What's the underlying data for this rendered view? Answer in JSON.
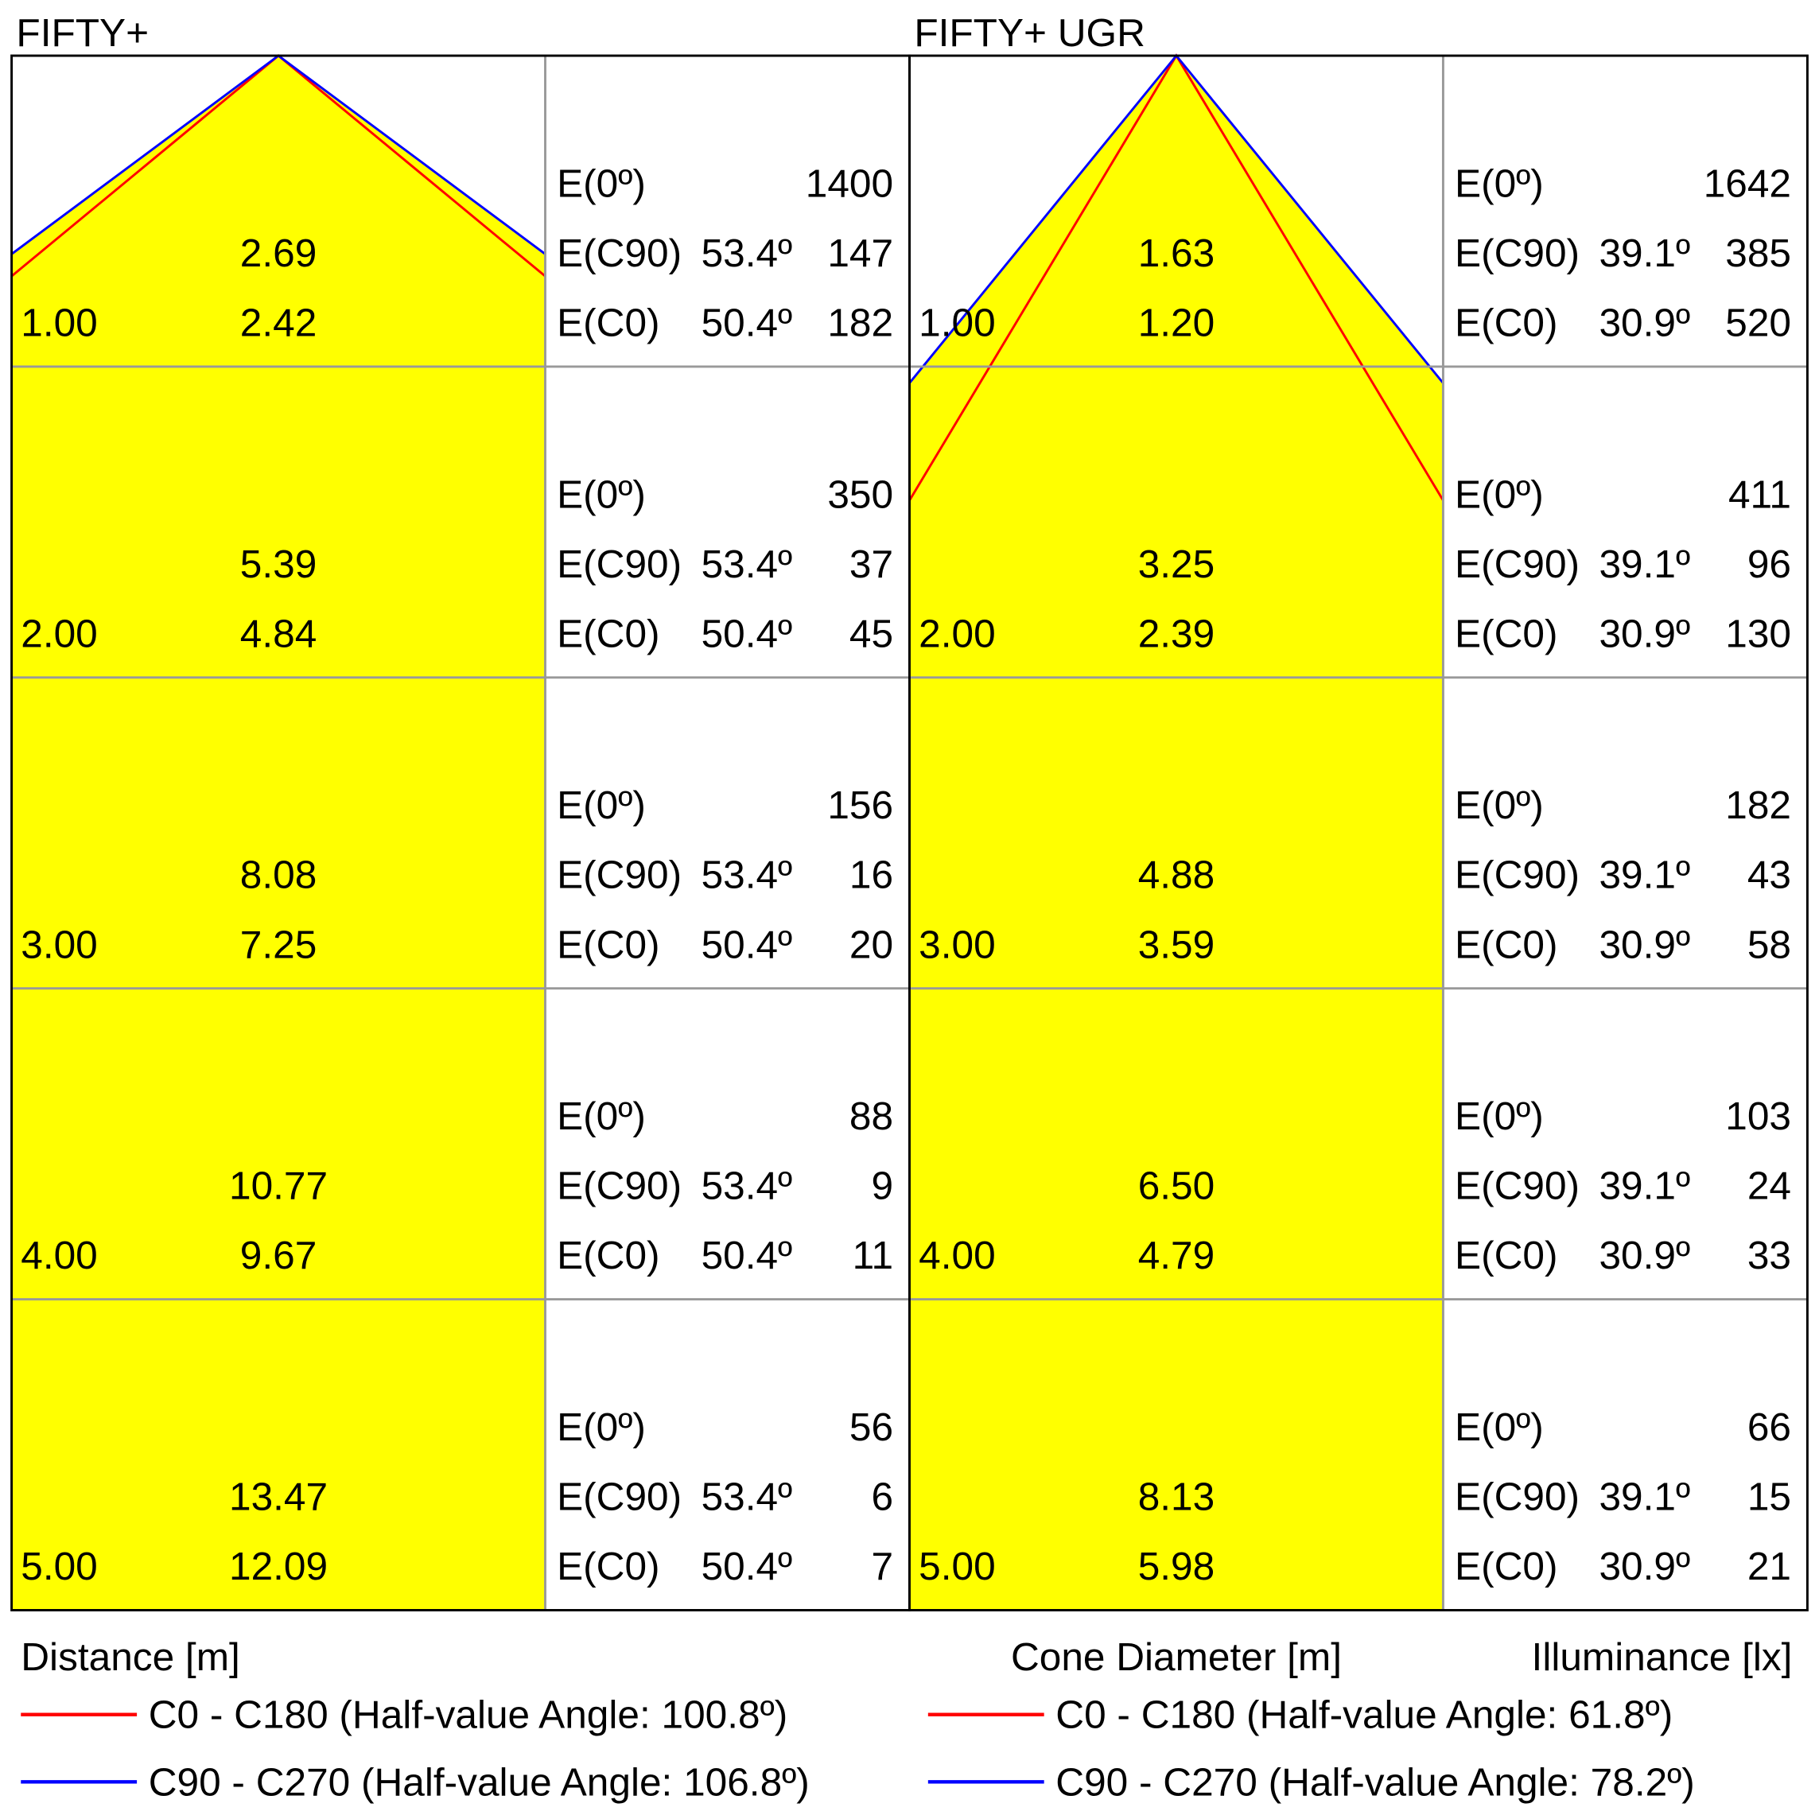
{
  "panels": [
    {
      "title": "FIFTY+",
      "rows": [
        {
          "distance": "1.00",
          "c90_diameter": "2.69",
          "c0_diameter": "2.42",
          "e0": "1400",
          "ec90_angle": "53.4º",
          "ec90": "147",
          "ec0_angle": "50.4º",
          "ec0": "182"
        },
        {
          "distance": "2.00",
          "c90_diameter": "5.39",
          "c0_diameter": "4.84",
          "e0": "350",
          "ec90_angle": "53.4º",
          "ec90": "37",
          "ec0_angle": "50.4º",
          "ec0": "45"
        },
        {
          "distance": "3.00",
          "c90_diameter": "8.08",
          "c0_diameter": "7.25",
          "e0": "156",
          "ec90_angle": "53.4º",
          "ec90": "16",
          "ec0_angle": "50.4º",
          "ec0": "20"
        },
        {
          "distance": "4.00",
          "c90_diameter": "10.77",
          "c0_diameter": "9.67",
          "e0": "88",
          "ec90_angle": "53.4º",
          "ec90": "9",
          "ec0_angle": "50.4º",
          "ec0": "11"
        },
        {
          "distance": "5.00",
          "c90_diameter": "13.47",
          "c0_diameter": "12.09",
          "e0": "56",
          "ec90_angle": "53.4º",
          "ec90": "6",
          "ec0_angle": "50.4º",
          "ec0": "7"
        }
      ],
      "legend": [
        "C0 - C180 (Half-value Angle: 100.8º)",
        "C90 - C270 (Half-value Angle: 106.8º)"
      ]
    },
    {
      "title": "FIFTY+ UGR",
      "rows": [
        {
          "distance": "1.00",
          "c90_diameter": "1.63",
          "c0_diameter": "1.20",
          "e0": "1642",
          "ec90_angle": "39.1º",
          "ec90": "385",
          "ec0_angle": "30.9º",
          "ec0": "520"
        },
        {
          "distance": "2.00",
          "c90_diameter": "3.25",
          "c0_diameter": "2.39",
          "e0": "411",
          "ec90_angle": "39.1º",
          "ec90": "96",
          "ec0_angle": "30.9º",
          "ec0": "130"
        },
        {
          "distance": "3.00",
          "c90_diameter": "4.88",
          "c0_diameter": "3.59",
          "e0": "182",
          "ec90_angle": "39.1º",
          "ec90": "43",
          "ec0_angle": "30.9º",
          "ec0": "58"
        },
        {
          "distance": "4.00",
          "c90_diameter": "6.50",
          "c0_diameter": "4.79",
          "e0": "103",
          "ec90_angle": "39.1º",
          "ec90": "24",
          "ec0_angle": "30.9º",
          "ec0": "33"
        },
        {
          "distance": "5.00",
          "c90_diameter": "8.13",
          "c0_diameter": "5.98",
          "e0": "66",
          "ec90_angle": "39.1º",
          "ec90": "15",
          "ec0_angle": "30.9º",
          "ec0": "21"
        }
      ],
      "legend": [
        "C0 - C180 (Half-value Angle: 61.8º)",
        "C90 - C270 (Half-value Angle: 78.2º)"
      ]
    }
  ],
  "labels": {
    "e0": "E(0º)",
    "ec90": "E(C90)",
    "ec0": "E(C0)",
    "distance": "Distance [m]",
    "cone": "Cone Diameter [m]",
    "illuminance": "Illuminance [lx]"
  },
  "colors": {
    "c0": "#ff0000",
    "c90": "#0000ff",
    "cone": "#ffff00"
  }
}
